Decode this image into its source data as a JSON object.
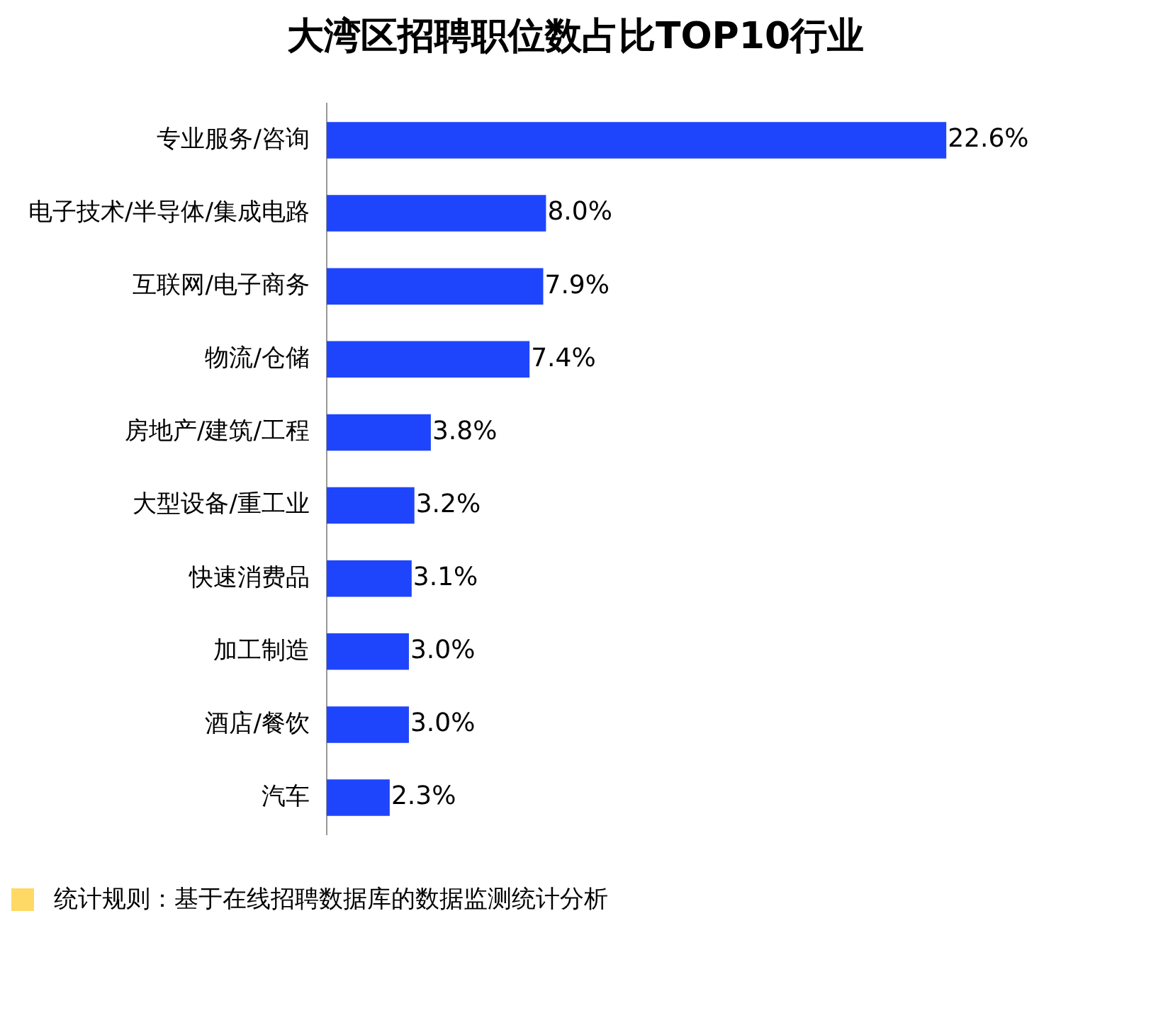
{
  "chart_data": {
    "type": "bar",
    "orientation": "horizontal",
    "title": "大湾区招聘职位数占比TOP10行业",
    "categories": [
      "专业服务/咨询",
      "电子技术/半导体/集成电路",
      "互联网/电子商务",
      "物流/仓储",
      "房地产/建筑/工程",
      "大型设备/重工业",
      "快速消费品",
      "加工制造",
      "酒店/餐饮",
      "汽车"
    ],
    "values": [
      22.6,
      8.0,
      7.9,
      7.4,
      3.8,
      3.2,
      3.1,
      3.0,
      3.0,
      2.3
    ],
    "value_labels": [
      "22.6%",
      "8.0%",
      "7.9%",
      "7.4%",
      "3.8%",
      "3.2%",
      "3.1%",
      "3.0%",
      "3.0%",
      "2.3%"
    ],
    "color": "#1f45fc",
    "grid": false,
    "legend": false,
    "annotations": [
      "统计规则：基于在线招聘数据库的数据监测统计分析"
    ]
  }
}
